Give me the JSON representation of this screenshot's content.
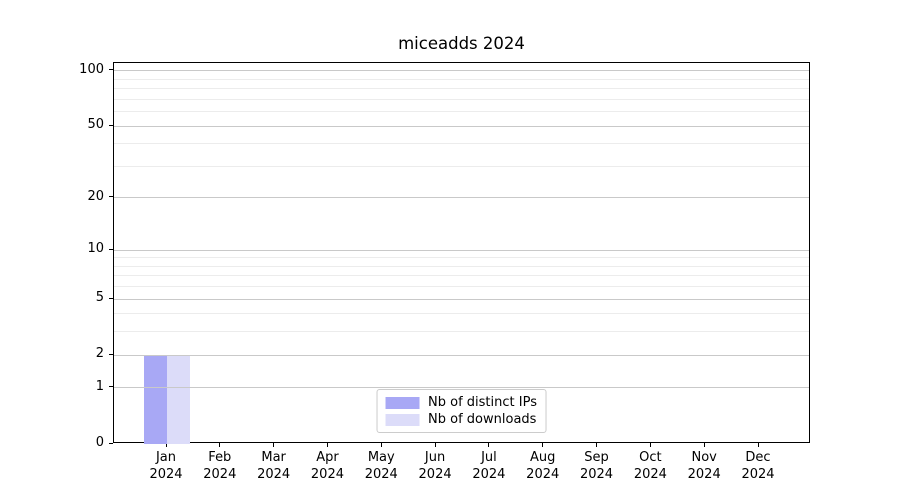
{
  "chart_data": {
    "type": "bar",
    "title": "miceadds 2024",
    "x_year": "2024",
    "categories": [
      "Jan",
      "Feb",
      "Mar",
      "Apr",
      "May",
      "Jun",
      "Jul",
      "Aug",
      "Sep",
      "Oct",
      "Nov",
      "Dec"
    ],
    "series": [
      {
        "name": "Nb of distinct IPs",
        "color": "#a8a8f5",
        "values": [
          2,
          0,
          0,
          0,
          0,
          0,
          0,
          0,
          0,
          0,
          0,
          0
        ]
      },
      {
        "name": "Nb of downloads",
        "color": "#dcdcf9",
        "values": [
          2,
          0,
          0,
          0,
          0,
          0,
          0,
          0,
          0,
          0,
          0,
          0
        ]
      }
    ],
    "y_axis": {
      "scale": "log1p",
      "major_ticks": [
        0,
        1,
        2,
        5,
        10,
        20,
        50,
        100
      ],
      "minor_ticks": [
        3,
        4,
        6,
        7,
        8,
        9,
        30,
        40,
        60,
        70,
        80,
        90
      ],
      "top_value": 110.5
    },
    "legend": {
      "position": "lower center",
      "entries": [
        "Nb of distinct IPs",
        "Nb of downloads"
      ]
    },
    "grid": true,
    "colors": {
      "major_grid": "#c9c9c9",
      "minor_grid": "#ececec",
      "spine": "#000000",
      "text": "#000000",
      "background": "#ffffff"
    }
  }
}
